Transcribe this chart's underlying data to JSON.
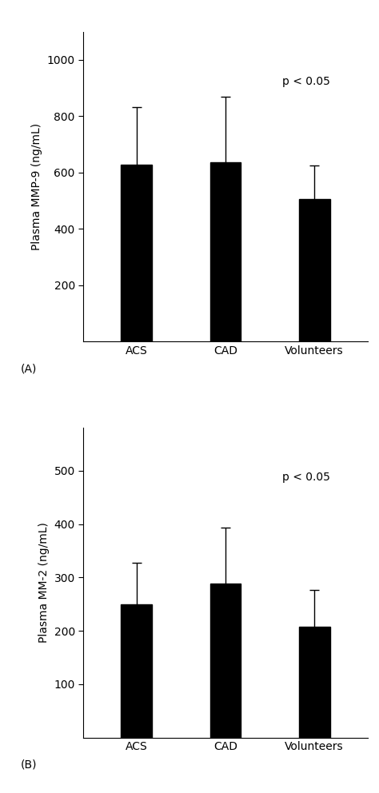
{
  "panel_A": {
    "categories": [
      "ACS",
      "CAD",
      "Volunteers"
    ],
    "values": [
      628,
      635,
      505
    ],
    "errors": [
      205,
      235,
      120
    ],
    "ylabel": "Plasma MMP-9 (ng/mL)",
    "ylim": [
      0,
      1100
    ],
    "yticks": [
      200,
      400,
      600,
      800,
      1000
    ],
    "pvalue": "p < 0.05",
    "label": "(A)"
  },
  "panel_B": {
    "categories": [
      "ACS",
      "CAD",
      "Volunteers"
    ],
    "values": [
      250,
      288,
      208
    ],
    "errors": [
      78,
      105,
      68
    ],
    "ylabel": "Plasma MM-2 (ng/mL)",
    "ylim": [
      0,
      580
    ],
    "yticks": [
      100,
      200,
      300,
      400,
      500
    ],
    "pvalue": "p < 0.05",
    "label": "(B)"
  },
  "bar_color": "#000000",
  "bar_width": 0.35,
  "error_capsize": 4,
  "error_color": "#000000",
  "background_color": "#ffffff",
  "label_fontsize": 10,
  "tick_fontsize": 10,
  "pvalue_fontsize": 10,
  "panel_label_fontsize": 10
}
